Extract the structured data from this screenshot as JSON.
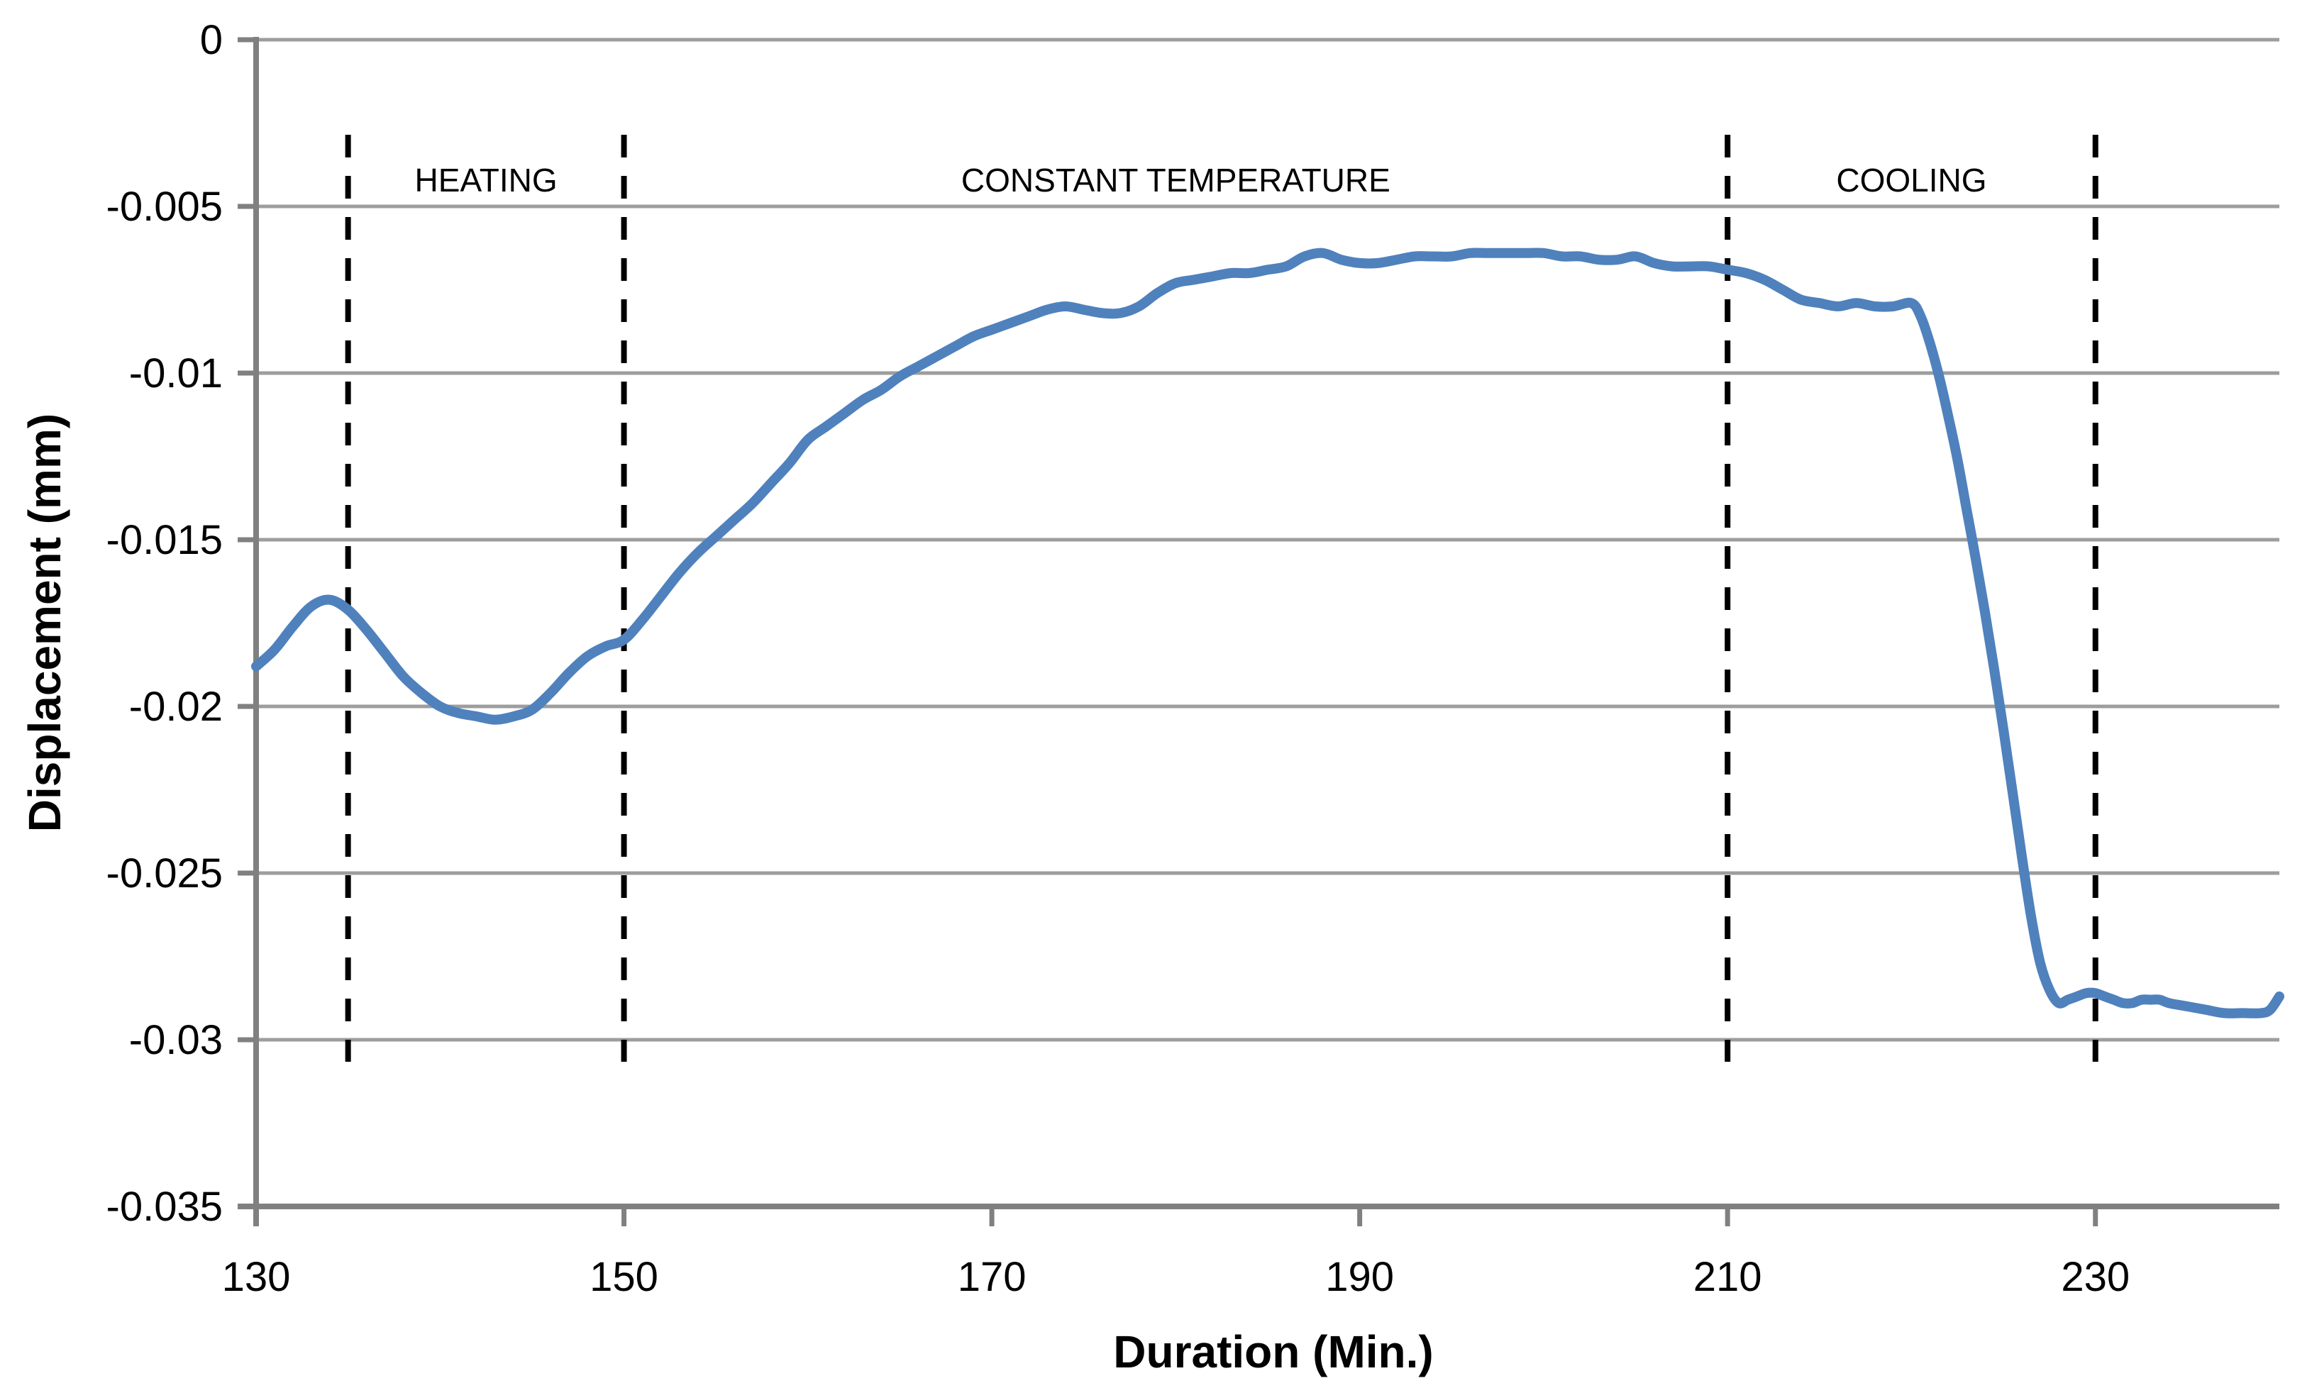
{
  "x_axis": {
    "title": "Duration (Min.)",
    "min": 130,
    "max": 240,
    "ticks": [
      {
        "label": "130",
        "value": 130
      },
      {
        "label": "150",
        "value": 150
      },
      {
        "label": "170",
        "value": 170
      },
      {
        "label": "190",
        "value": 190
      },
      {
        "label": "210",
        "value": 210
      },
      {
        "label": "230",
        "value": 230
      }
    ]
  },
  "y_axis": {
    "title": "Displacement (mm)",
    "min": -0.035,
    "max": 0,
    "ticks": [
      {
        "label": "0",
        "value": 0
      },
      {
        "label": "-0.005",
        "value": -0.005
      },
      {
        "label": "-0.01",
        "value": -0.01
      },
      {
        "label": "-0.015",
        "value": -0.015
      },
      {
        "label": "-0.02",
        "value": -0.02
      },
      {
        "label": "-0.025",
        "value": -0.025
      },
      {
        "label": "-0.03",
        "value": -0.03
      },
      {
        "label": "-0.035",
        "value": -0.035
      }
    ]
  },
  "regions": [
    {
      "label": "HEATING",
      "from": 135,
      "to": 150
    },
    {
      "label": "CONSTANT TEMPERATURE",
      "from": 150,
      "to": 210
    },
    {
      "label": "COOLING",
      "from": 210,
      "to": 230
    }
  ],
  "colors": {
    "series": "#4F81BD",
    "gridline": "#9D9D9D",
    "axis": "#808080",
    "boundary_dash": "#000000",
    "text": "#000000"
  },
  "chart_data": {
    "type": "line",
    "title": "",
    "xlabel": "Duration (Min.)",
    "ylabel": "Displacement (mm)",
    "xlim": [
      130,
      240
    ],
    "ylim": [
      -0.035,
      0
    ],
    "grid": true,
    "legend": false,
    "annotations": [
      "HEATING",
      "CONSTANT TEMPERATURE",
      "COOLING"
    ],
    "region_boundaries_min": [
      135,
      150,
      210,
      230
    ],
    "series": [
      {
        "name": "Displacement",
        "smooth": true,
        "x": [
          130,
          131,
          132,
          133,
          134,
          135,
          136,
          137,
          138,
          139,
          140,
          141,
          142,
          143,
          144,
          145,
          146,
          147,
          148,
          149,
          150,
          151,
          152,
          153,
          154,
          155,
          156,
          157,
          158,
          159,
          160,
          161,
          162,
          163,
          164,
          165,
          166,
          167,
          168,
          169,
          170,
          171,
          172,
          173,
          174,
          175,
          176,
          177,
          178,
          179,
          180,
          181,
          182,
          183,
          184,
          185,
          186,
          187,
          188,
          189,
          190,
          191,
          192,
          193,
          194,
          195,
          196,
          197,
          198,
          199,
          200,
          201,
          202,
          203,
          204,
          205,
          206,
          207,
          208,
          209,
          210,
          211,
          212,
          213,
          214,
          215,
          216,
          217,
          218,
          219,
          220,
          220.5,
          221,
          221.5,
          222,
          222.5,
          223,
          223.5,
          224,
          224.5,
          225,
          225.5,
          226,
          226.5,
          227,
          227.5,
          228,
          228.5,
          229,
          229.5,
          230,
          230.5,
          231,
          231.5,
          232,
          232.5,
          233,
          233.5,
          234,
          235,
          236,
          237,
          238,
          239,
          239.5,
          240
        ],
        "y": [
          -0.0188,
          -0.0183,
          -0.0176,
          -0.017,
          -0.0168,
          -0.0171,
          -0.0177,
          -0.0184,
          -0.0191,
          -0.0196,
          -0.02,
          -0.0202,
          -0.0203,
          -0.0204,
          -0.0203,
          -0.0201,
          -0.0196,
          -0.019,
          -0.0185,
          -0.0182,
          -0.018,
          -0.0174,
          -0.0167,
          -0.016,
          -0.0154,
          -0.0149,
          -0.0144,
          -0.0139,
          -0.0133,
          -0.0127,
          -0.012,
          -0.0116,
          -0.0112,
          -0.0108,
          -0.0105,
          -0.0101,
          -0.0098,
          -0.0095,
          -0.0092,
          -0.0089,
          -0.0087,
          -0.0085,
          -0.0083,
          -0.0081,
          -0.008,
          -0.0081,
          -0.0082,
          -0.0082,
          -0.008,
          -0.0076,
          -0.0073,
          -0.0072,
          -0.0071,
          -0.007,
          -0.007,
          -0.0069,
          -0.0068,
          -0.0065,
          -0.0064,
          -0.0066,
          -0.0067,
          -0.0067,
          -0.0066,
          -0.0065,
          -0.0065,
          -0.0065,
          -0.0064,
          -0.0064,
          -0.0064,
          -0.0064,
          -0.0064,
          -0.0065,
          -0.0065,
          -0.0066,
          -0.0066,
          -0.0065,
          -0.0067,
          -0.0068,
          -0.0068,
          -0.0068,
          -0.0069,
          -0.007,
          -0.0072,
          -0.0075,
          -0.0078,
          -0.0079,
          -0.008,
          -0.0079,
          -0.008,
          -0.008,
          -0.0079,
          -0.0083,
          -0.0091,
          -0.0101,
          -0.0113,
          -0.0126,
          -0.0141,
          -0.0156,
          -0.0172,
          -0.0189,
          -0.0207,
          -0.0226,
          -0.0245,
          -0.0263,
          -0.0277,
          -0.0285,
          -0.0289,
          -0.0288,
          -0.0287,
          -0.0286,
          -0.0286,
          -0.0287,
          -0.0288,
          -0.0289,
          -0.0289,
          -0.0288,
          -0.0288,
          -0.0288,
          -0.0289,
          -0.029,
          -0.0291,
          -0.0292,
          -0.0292,
          -0.0292,
          -0.0291,
          -0.0287
        ]
      }
    ]
  }
}
